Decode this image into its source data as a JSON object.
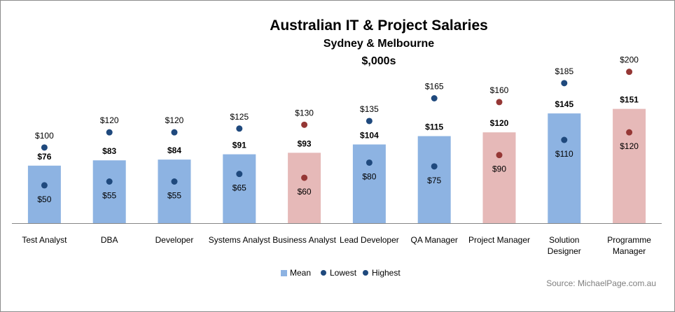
{
  "chart_data": {
    "type": "bar",
    "title": "Australian IT & Project Salaries",
    "subtitle": "Sydney & Melbourne",
    "units": "$,000s",
    "source": "Source: MichaelPage.com.au",
    "ylim": [
      0,
      220
    ],
    "grid": false,
    "legend_position": "bottom",
    "categories": [
      [
        "Test Analyst"
      ],
      [
        "DBA"
      ],
      [
        "Developer"
      ],
      [
        "Systems Analyst"
      ],
      [
        "Business Analyst"
      ],
      [
        "Lead Developer"
      ],
      [
        "QA Manager"
      ],
      [
        "Project Manager"
      ],
      [
        "Solution",
        "Designer"
      ],
      [
        "Programme",
        "Manager"
      ]
    ],
    "highlighted": [
      false,
      false,
      false,
      false,
      true,
      false,
      false,
      true,
      false,
      true
    ],
    "series": [
      {
        "name": "Mean",
        "values": [
          76,
          83,
          84,
          91,
          93,
          104,
          115,
          120,
          145,
          151
        ],
        "labels": [
          "$76",
          "$83",
          "$84",
          "$91",
          "$93",
          "$104",
          "$115",
          "$120",
          "$145",
          "$151"
        ]
      },
      {
        "name": "Lowest",
        "values": [
          50,
          55,
          55,
          65,
          60,
          80,
          75,
          90,
          110,
          120
        ],
        "labels": [
          "$50",
          "$55",
          "$55",
          "$65",
          "$60",
          "$80",
          "$75",
          "$90",
          "$110",
          "$120"
        ]
      },
      {
        "name": "Highest",
        "values": [
          100,
          120,
          120,
          125,
          130,
          135,
          165,
          160,
          185,
          200
        ],
        "labels": [
          "$100",
          "$120",
          "$120",
          "$125",
          "$130",
          "$135",
          "$165",
          "$160",
          "$185",
          "$200"
        ]
      }
    ],
    "colors": {
      "bar": "#8db3e2",
      "bar_highlight": "#e6b9b8",
      "dot": "#1f497d",
      "dot_highlight": "#953735",
      "axis": "#868686"
    }
  }
}
